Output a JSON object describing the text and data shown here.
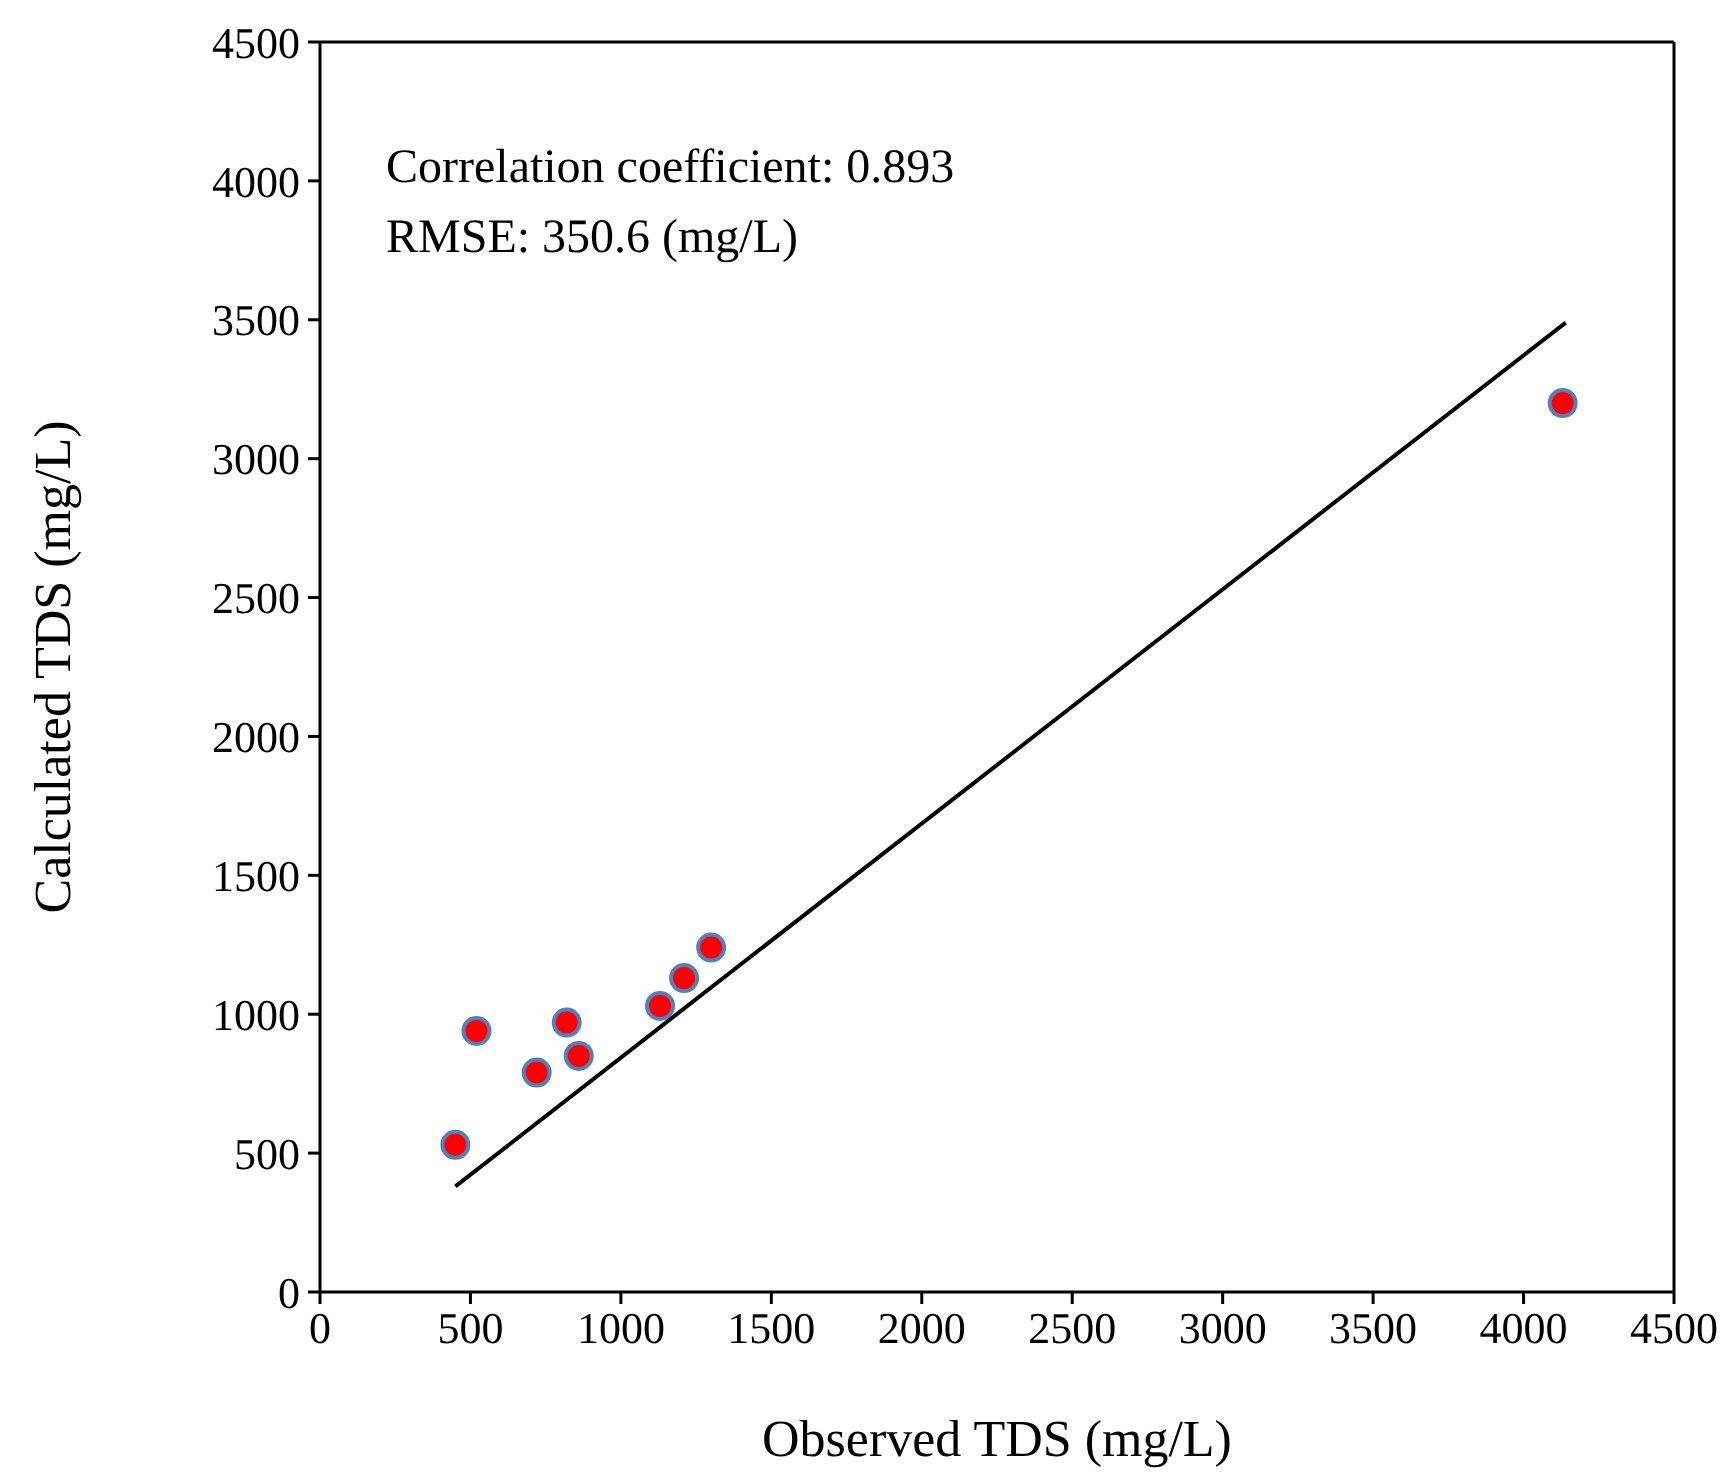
{
  "chart_data": {
    "type": "scatter",
    "xlabel": "Observed TDS (mg/L)",
    "ylabel": "Calculated TDS (mg/L)",
    "annotations": [
      "Correlation coefficient: 0.893",
      "RMSE: 350.6 (mg/L)"
    ],
    "series": [
      {
        "color": "#ff0000",
        "marker": "circle",
        "x": [
          450,
          520,
          720,
          820,
          860,
          1130,
          1210,
          1300,
          4130
        ],
        "values": [
          530,
          940,
          790,
          970,
          850,
          1030,
          1130,
          1240,
          3200
        ]
      },
      {
        "type": "line",
        "color": "#000000",
        "marker": "none",
        "line_style": "solid",
        "x": [
          450,
          4140
        ],
        "values": [
          380,
          3490
        ]
      }
    ],
    "grid": false,
    "legend": false,
    "xlim": [
      0,
      4500
    ],
    "ylim": [
      0,
      4500
    ],
    "xticks": [
      0,
      500,
      1000,
      1500,
      2000,
      2500,
      3000,
      3500,
      4000,
      4500
    ],
    "yticks": [
      0,
      500,
      1000,
      1500,
      2000,
      2500,
      3000,
      3500,
      4000,
      4500
    ]
  }
}
